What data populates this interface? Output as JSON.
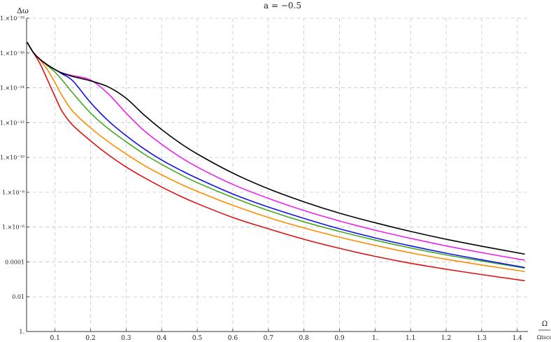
{
  "chart_data": {
    "type": "line",
    "title": "a = −0.5",
    "ylabel": "Δω",
    "xlabel": {
      "num": "Ω",
      "den": "Ωisco"
    },
    "x_scale": "linear",
    "y_scale": "log10",
    "xlim": [
      0.02,
      1.43
    ],
    "ylim_exp": [
      -18,
      0
    ],
    "grid": true,
    "x_ticks": [
      0.1,
      0.2,
      0.3,
      0.4,
      0.5,
      0.6,
      0.7,
      0.8,
      0.9,
      1.0,
      1.1,
      1.2,
      1.3,
      1.4
    ],
    "x_tick_labels": [
      "0.1",
      "0.2",
      "0.3",
      "0.4",
      "0.5",
      "0.6",
      "0.7",
      "0.8",
      "0.9",
      "1.",
      "1.1",
      "1.2",
      "1.3",
      "1.4"
    ],
    "y_ticks_exp": [
      0,
      -2,
      -4,
      -6,
      -8,
      -10,
      -12,
      -14,
      -16,
      -18
    ],
    "y_tick_labels": [
      "1.",
      "0.01",
      "0.0001",
      "1.×10⁻⁶",
      "1.×10⁻⁸",
      "1.×10⁻¹⁰",
      "1.×10⁻¹²",
      "1.×10⁻¹⁴",
      "1.×10⁻¹⁶",
      "1.×10⁻¹⁸"
    ],
    "series": [
      {
        "color": "#dd1111",
        "points": [
          [
            0.022,
            -16.6
          ],
          [
            0.04,
            -16.0
          ],
          [
            0.06,
            -15.3
          ],
          [
            0.08,
            -14.4
          ],
          [
            0.1,
            -13.5
          ],
          [
            0.12,
            -12.65
          ],
          [
            0.15,
            -11.85
          ],
          [
            0.2,
            -10.95
          ],
          [
            0.25,
            -10.15
          ],
          [
            0.3,
            -9.45
          ],
          [
            0.35,
            -8.85
          ],
          [
            0.4,
            -8.3
          ],
          [
            0.45,
            -7.8
          ],
          [
            0.5,
            -7.35
          ],
          [
            0.6,
            -6.55
          ],
          [
            0.7,
            -5.9
          ],
          [
            0.8,
            -5.3
          ],
          [
            0.9,
            -4.78
          ],
          [
            1.0,
            -4.32
          ],
          [
            1.1,
            -3.92
          ],
          [
            1.2,
            -3.58
          ],
          [
            1.3,
            -3.27
          ],
          [
            1.42,
            -2.92
          ]
        ]
      },
      {
        "color": "#ff8c00",
        "points": [
          [
            0.022,
            -16.6
          ],
          [
            0.04,
            -16.0
          ],
          [
            0.06,
            -15.55
          ],
          [
            0.08,
            -15.0
          ],
          [
            0.1,
            -14.3
          ],
          [
            0.12,
            -13.55
          ],
          [
            0.15,
            -12.65
          ],
          [
            0.2,
            -11.7
          ],
          [
            0.25,
            -10.9
          ],
          [
            0.3,
            -10.2
          ],
          [
            0.35,
            -9.55
          ],
          [
            0.4,
            -9.0
          ],
          [
            0.45,
            -8.5
          ],
          [
            0.5,
            -8.05
          ],
          [
            0.6,
            -7.25
          ],
          [
            0.7,
            -6.55
          ],
          [
            0.8,
            -5.95
          ],
          [
            0.9,
            -5.42
          ],
          [
            1.0,
            -4.95
          ],
          [
            1.1,
            -4.52
          ],
          [
            1.2,
            -4.15
          ],
          [
            1.3,
            -3.82
          ],
          [
            1.42,
            -3.45
          ]
        ]
      },
      {
        "color": "#44aa22",
        "points": [
          [
            0.022,
            -16.6
          ],
          [
            0.04,
            -16.0
          ],
          [
            0.06,
            -15.6
          ],
          [
            0.08,
            -15.25
          ],
          [
            0.1,
            -14.9
          ],
          [
            0.12,
            -14.45
          ],
          [
            0.15,
            -13.7
          ],
          [
            0.2,
            -12.55
          ],
          [
            0.25,
            -11.65
          ],
          [
            0.3,
            -10.9
          ],
          [
            0.35,
            -10.2
          ],
          [
            0.4,
            -9.6
          ],
          [
            0.45,
            -9.05
          ],
          [
            0.5,
            -8.55
          ],
          [
            0.6,
            -7.7
          ],
          [
            0.7,
            -6.95
          ],
          [
            0.8,
            -6.3
          ],
          [
            0.9,
            -5.75
          ],
          [
            1.0,
            -5.25
          ],
          [
            1.1,
            -4.8
          ],
          [
            1.2,
            -4.4
          ],
          [
            1.3,
            -4.05
          ],
          [
            1.42,
            -3.65
          ]
        ]
      },
      {
        "color": "#1111ee",
        "points": [
          [
            0.022,
            -16.6
          ],
          [
            0.04,
            -16.0
          ],
          [
            0.06,
            -15.6
          ],
          [
            0.08,
            -15.3
          ],
          [
            0.1,
            -15.05
          ],
          [
            0.12,
            -14.8
          ],
          [
            0.15,
            -14.4
          ],
          [
            0.2,
            -13.15
          ],
          [
            0.25,
            -12.1
          ],
          [
            0.3,
            -11.25
          ],
          [
            0.35,
            -10.5
          ],
          [
            0.4,
            -9.85
          ],
          [
            0.45,
            -9.3
          ],
          [
            0.5,
            -8.8
          ],
          [
            0.6,
            -7.9
          ],
          [
            0.7,
            -7.15
          ],
          [
            0.8,
            -6.5
          ],
          [
            0.9,
            -5.9
          ],
          [
            1.0,
            -5.38
          ],
          [
            1.1,
            -4.92
          ],
          [
            1.2,
            -4.5
          ],
          [
            1.3,
            -4.12
          ],
          [
            1.42,
            -3.68
          ]
        ]
      },
      {
        "color": "#ee22ee",
        "points": [
          [
            0.022,
            -16.6
          ],
          [
            0.04,
            -16.0
          ],
          [
            0.06,
            -15.6
          ],
          [
            0.08,
            -15.3
          ],
          [
            0.1,
            -15.05
          ],
          [
            0.12,
            -14.85
          ],
          [
            0.15,
            -14.7
          ],
          [
            0.2,
            -14.45
          ],
          [
            0.25,
            -13.65
          ],
          [
            0.3,
            -12.55
          ],
          [
            0.35,
            -11.55
          ],
          [
            0.4,
            -10.75
          ],
          [
            0.45,
            -10.05
          ],
          [
            0.5,
            -9.45
          ],
          [
            0.6,
            -8.45
          ],
          [
            0.7,
            -7.65
          ],
          [
            0.8,
            -6.95
          ],
          [
            0.9,
            -6.35
          ],
          [
            1.0,
            -5.82
          ],
          [
            1.1,
            -5.35
          ],
          [
            1.2,
            -4.92
          ],
          [
            1.3,
            -4.53
          ],
          [
            1.42,
            -4.1
          ]
        ]
      },
      {
        "color": "#000000",
        "points": [
          [
            0.022,
            -16.6
          ],
          [
            0.04,
            -16.0
          ],
          [
            0.06,
            -15.6
          ],
          [
            0.08,
            -15.3
          ],
          [
            0.1,
            -15.05
          ],
          [
            0.12,
            -14.85
          ],
          [
            0.15,
            -14.65
          ],
          [
            0.2,
            -14.4
          ],
          [
            0.25,
            -14.05
          ],
          [
            0.3,
            -13.4
          ],
          [
            0.35,
            -12.45
          ],
          [
            0.4,
            -11.6
          ],
          [
            0.45,
            -10.85
          ],
          [
            0.5,
            -10.2
          ],
          [
            0.6,
            -9.1
          ],
          [
            0.7,
            -8.2
          ],
          [
            0.8,
            -7.45
          ],
          [
            0.9,
            -6.8
          ],
          [
            1.0,
            -6.25
          ],
          [
            1.1,
            -5.75
          ],
          [
            1.2,
            -5.3
          ],
          [
            1.3,
            -4.9
          ],
          [
            1.42,
            -4.45
          ]
        ]
      }
    ]
  }
}
